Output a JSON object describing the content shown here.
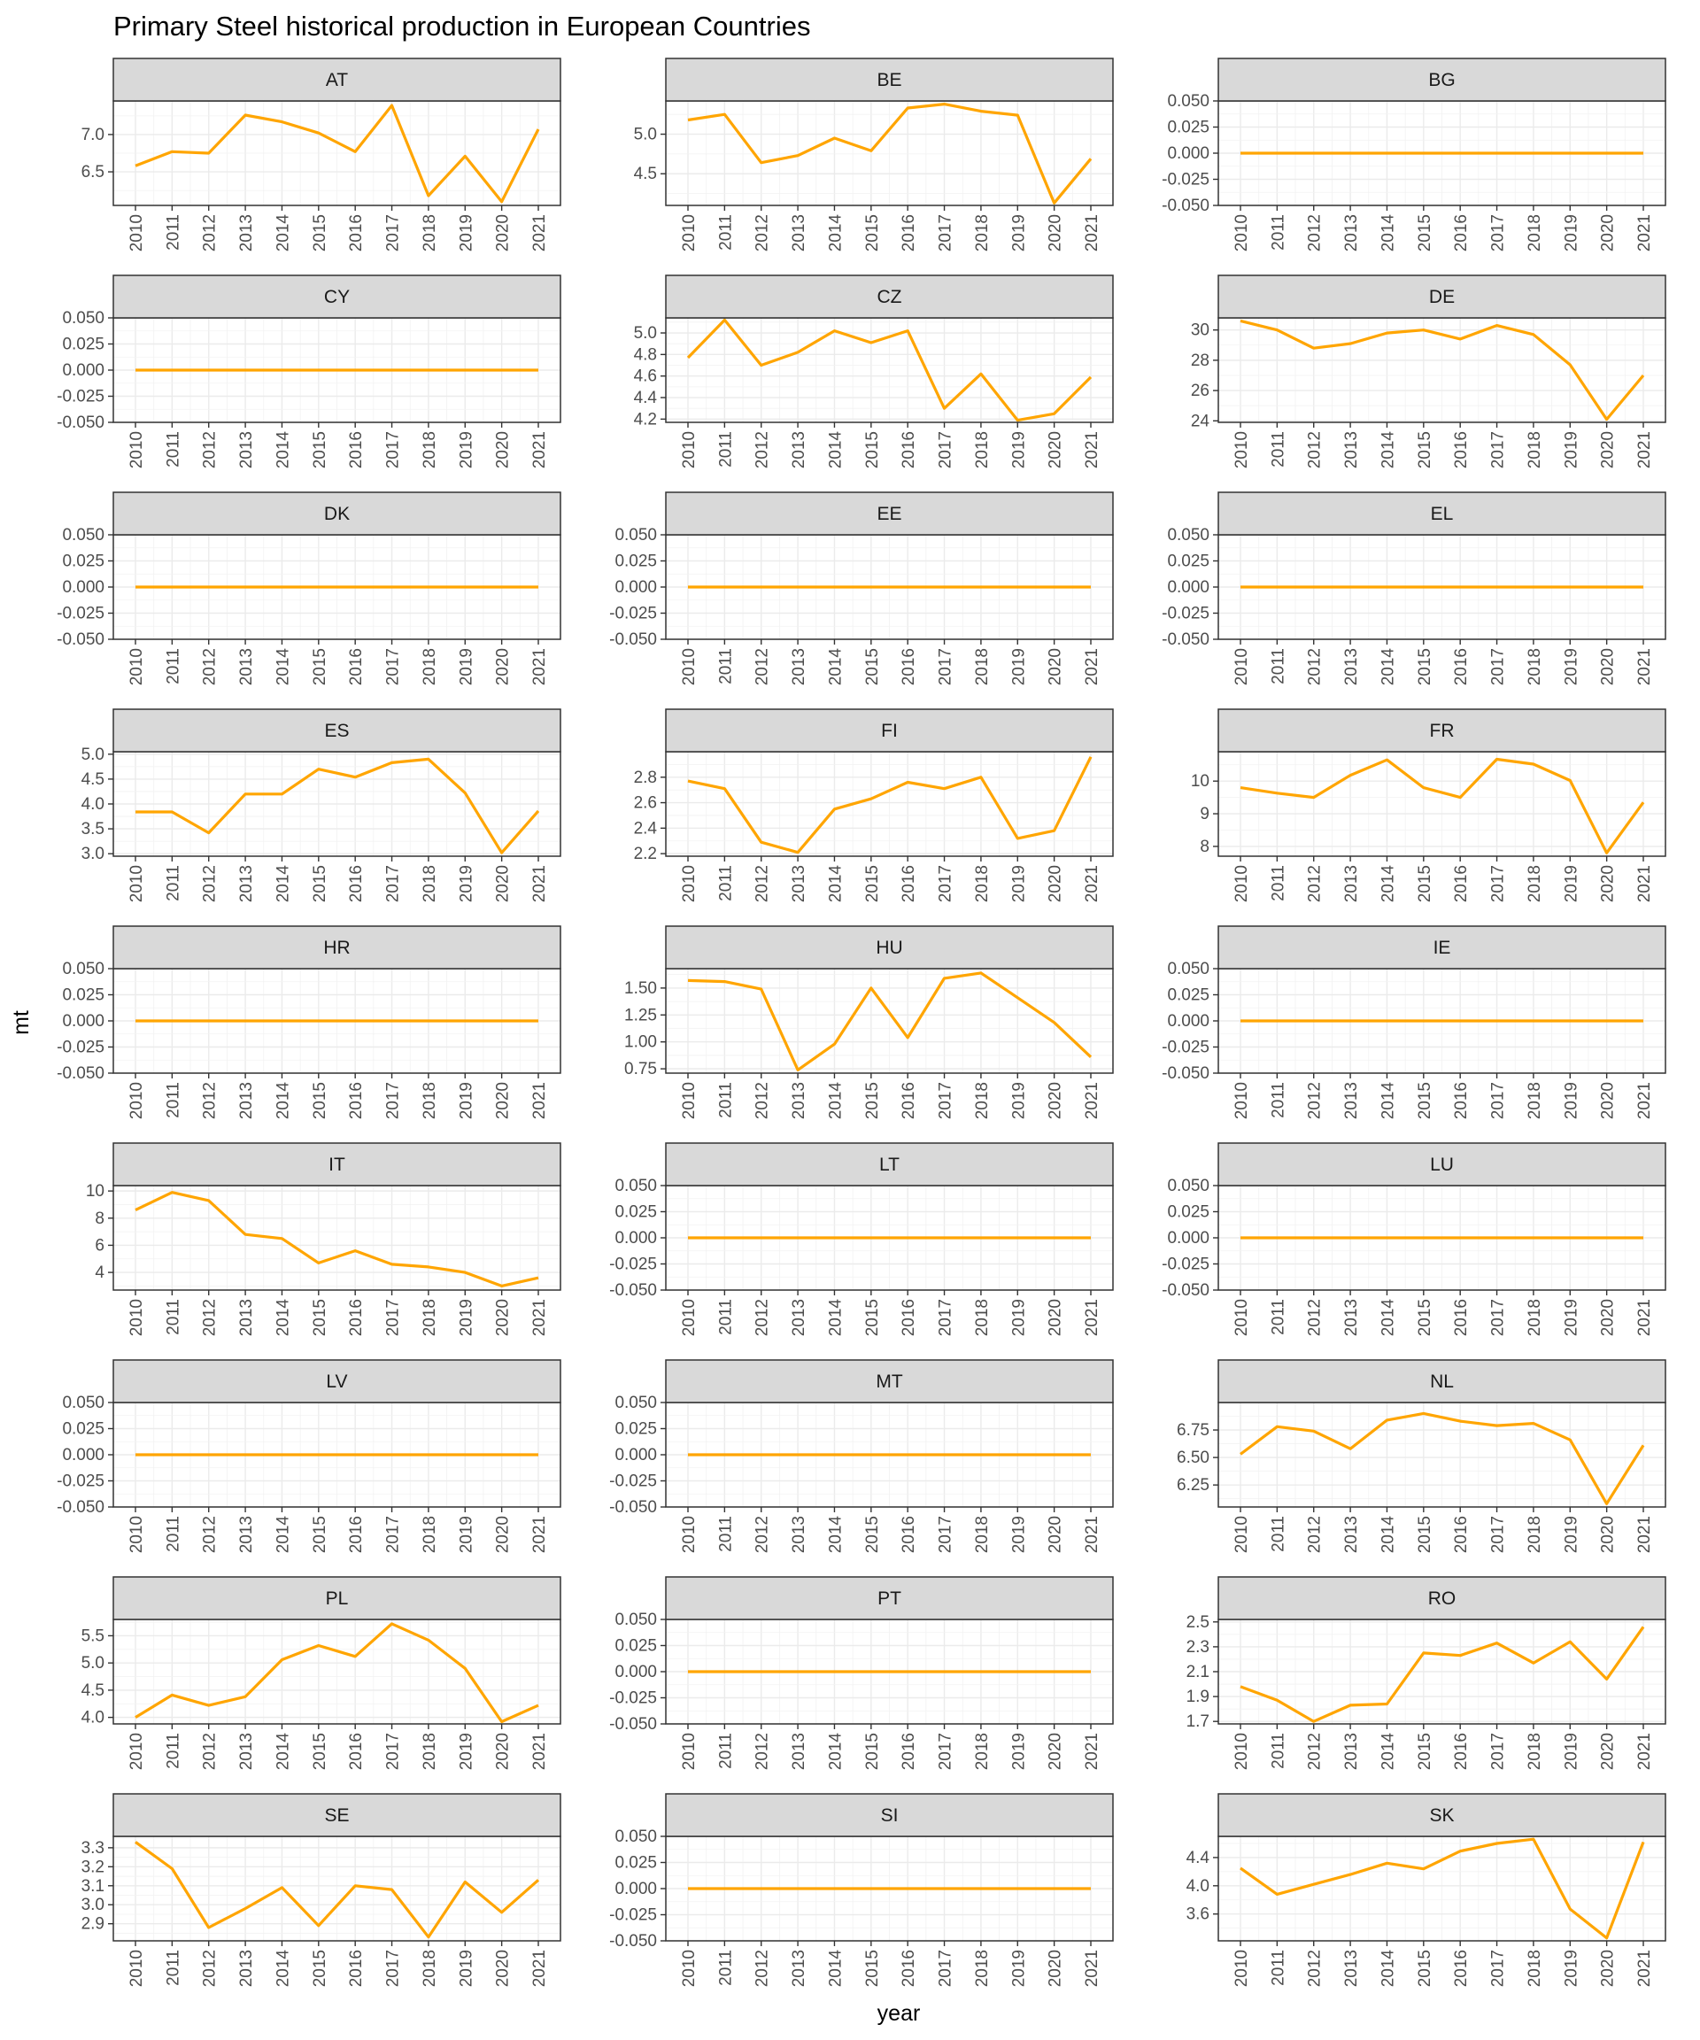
{
  "chart_data": {
    "type": "line",
    "title": "Primary Steel historical production in European Countries",
    "xlabel": "year",
    "ylabel": "mt",
    "x": [
      "2010",
      "2011",
      "2012",
      "2013",
      "2014",
      "2015",
      "2016",
      "2017",
      "2018",
      "2019",
      "2020",
      "2021"
    ],
    "line_color": "#FFA500",
    "layout": "facet grid, 9 rows x 3 columns",
    "grid": true,
    "panels": [
      {
        "name": "AT",
        "values": [
          6.58,
          6.77,
          6.75,
          7.26,
          7.17,
          7.02,
          6.77,
          7.39,
          6.18,
          6.71,
          6.1,
          7.07
        ],
        "yticks": [
          "6.5",
          "7.0"
        ],
        "ylim": [
          6.05,
          7.45
        ]
      },
      {
        "name": "BE",
        "values": [
          5.18,
          5.25,
          4.64,
          4.73,
          4.95,
          4.79,
          5.33,
          5.38,
          5.29,
          5.24,
          4.13,
          4.69
        ],
        "yticks": [
          "4.5",
          "5.0"
        ],
        "ylim": [
          4.1,
          5.42
        ]
      },
      {
        "name": "BG",
        "values": [
          0,
          0,
          0,
          0,
          0,
          0,
          0,
          0,
          0,
          0,
          0,
          0
        ],
        "yticks": [
          "-0.050",
          "-0.025",
          "0.000",
          "0.025",
          "0.050"
        ],
        "ylim": [
          -0.05,
          0.05
        ]
      },
      {
        "name": "CY",
        "values": [
          0,
          0,
          0,
          0,
          0,
          0,
          0,
          0,
          0,
          0,
          0,
          0
        ],
        "yticks": [
          "-0.050",
          "-0.025",
          "0.000",
          "0.025",
          "0.050"
        ],
        "ylim": [
          -0.05,
          0.05
        ]
      },
      {
        "name": "CZ",
        "values": [
          4.77,
          5.12,
          4.7,
          4.82,
          5.02,
          4.91,
          5.02,
          4.3,
          4.62,
          4.19,
          4.25,
          4.59
        ],
        "yticks": [
          "4.2",
          "4.4",
          "4.6",
          "4.8",
          "5.0"
        ],
        "ylim": [
          4.17,
          5.14
        ]
      },
      {
        "name": "DE",
        "values": [
          30.6,
          30.0,
          28.8,
          29.1,
          29.8,
          30.0,
          29.4,
          30.3,
          29.7,
          27.7,
          24.1,
          27.0
        ],
        "yticks": [
          "24",
          "26",
          "28",
          "30"
        ],
        "ylim": [
          23.9,
          30.8
        ]
      },
      {
        "name": "DK",
        "values": [
          0,
          0,
          0,
          0,
          0,
          0,
          0,
          0,
          0,
          0,
          0,
          0
        ],
        "yticks": [
          "-0.050",
          "-0.025",
          "0.000",
          "0.025",
          "0.050"
        ],
        "ylim": [
          -0.05,
          0.05
        ]
      },
      {
        "name": "EE",
        "values": [
          0,
          0,
          0,
          0,
          0,
          0,
          0,
          0,
          0,
          0,
          0,
          0
        ],
        "yticks": [
          "-0.050",
          "-0.025",
          "0.000",
          "0.025",
          "0.050"
        ],
        "ylim": [
          -0.05,
          0.05
        ]
      },
      {
        "name": "EL",
        "values": [
          0,
          0,
          0,
          0,
          0,
          0,
          0,
          0,
          0,
          0,
          0,
          0
        ],
        "yticks": [
          "-0.050",
          "-0.025",
          "0.000",
          "0.025",
          "0.050"
        ],
        "ylim": [
          -0.05,
          0.05
        ]
      },
      {
        "name": "ES",
        "values": [
          3.84,
          3.84,
          3.42,
          4.2,
          4.2,
          4.7,
          4.54,
          4.83,
          4.9,
          4.22,
          3.02,
          3.86
        ],
        "yticks": [
          "3.0",
          "3.5",
          "4.0",
          "4.5",
          "5.0"
        ],
        "ylim": [
          2.95,
          5.05
        ]
      },
      {
        "name": "FI",
        "values": [
          2.77,
          2.71,
          2.29,
          2.21,
          2.55,
          2.63,
          2.76,
          2.71,
          2.8,
          2.32,
          2.38,
          2.96
        ],
        "yticks": [
          "2.2",
          "2.4",
          "2.6",
          "2.8"
        ],
        "ylim": [
          2.18,
          3.0
        ]
      },
      {
        "name": "FR",
        "values": [
          9.8,
          9.63,
          9.5,
          10.18,
          10.65,
          9.8,
          9.5,
          10.67,
          10.52,
          10.02,
          7.8,
          9.35
        ],
        "yticks": [
          "8",
          "9",
          "10"
        ],
        "ylim": [
          7.7,
          10.9
        ]
      },
      {
        "name": "HR",
        "values": [
          0,
          0,
          0,
          0,
          0,
          0,
          0,
          0,
          0,
          0,
          0,
          0
        ],
        "yticks": [
          "-0.050",
          "-0.025",
          "0.000",
          "0.025",
          "0.050"
        ],
        "ylim": [
          -0.05,
          0.05
        ]
      },
      {
        "name": "HU",
        "values": [
          1.57,
          1.56,
          1.49,
          0.74,
          0.98,
          1.5,
          1.04,
          1.59,
          1.64,
          1.41,
          1.18,
          0.86
        ],
        "yticks": [
          "0.75",
          "1.00",
          "1.25",
          "1.50"
        ],
        "ylim": [
          0.71,
          1.68
        ]
      },
      {
        "name": "IE",
        "values": [
          0,
          0,
          0,
          0,
          0,
          0,
          0,
          0,
          0,
          0,
          0,
          0
        ],
        "yticks": [
          "-0.050",
          "-0.025",
          "0.000",
          "0.025",
          "0.050"
        ],
        "ylim": [
          -0.05,
          0.05
        ]
      },
      {
        "name": "IT",
        "values": [
          8.6,
          9.9,
          9.3,
          6.8,
          6.5,
          4.7,
          5.6,
          4.6,
          4.4,
          4.0,
          3.0,
          3.6
        ],
        "yticks": [
          "4",
          "6",
          "8",
          "10"
        ],
        "ylim": [
          2.7,
          10.4
        ]
      },
      {
        "name": "LT",
        "values": [
          0,
          0,
          0,
          0,
          0,
          0,
          0,
          0,
          0,
          0,
          0,
          0
        ],
        "yticks": [
          "-0.050",
          "-0.025",
          "0.000",
          "0.025",
          "0.050"
        ],
        "ylim": [
          -0.05,
          0.05
        ]
      },
      {
        "name": "LU",
        "values": [
          0,
          0,
          0,
          0,
          0,
          0,
          0,
          0,
          0,
          0,
          0,
          0
        ],
        "yticks": [
          "-0.050",
          "-0.025",
          "0.000",
          "0.025",
          "0.050"
        ],
        "ylim": [
          -0.05,
          0.05
        ]
      },
      {
        "name": "LV",
        "values": [
          0,
          0,
          0,
          0,
          0,
          0,
          0,
          0,
          0,
          0,
          0,
          0
        ],
        "yticks": [
          "-0.050",
          "-0.025",
          "0.000",
          "0.025",
          "0.050"
        ],
        "ylim": [
          -0.05,
          0.05
        ]
      },
      {
        "name": "MT",
        "values": [
          0,
          0,
          0,
          0,
          0,
          0,
          0,
          0,
          0,
          0,
          0,
          0
        ],
        "yticks": [
          "-0.050",
          "-0.025",
          "0.000",
          "0.025",
          "0.050"
        ],
        "ylim": [
          -0.05,
          0.05
        ]
      },
      {
        "name": "NL",
        "values": [
          6.53,
          6.78,
          6.74,
          6.58,
          6.84,
          6.9,
          6.83,
          6.79,
          6.81,
          6.66,
          6.08,
          6.61
        ],
        "yticks": [
          "6.25",
          "6.50",
          "6.75"
        ],
        "ylim": [
          6.05,
          7.0
        ]
      },
      {
        "name": "PL",
        "values": [
          4.0,
          4.41,
          4.22,
          4.38,
          5.06,
          5.32,
          5.12,
          5.72,
          5.42,
          4.9,
          3.92,
          4.22
        ],
        "yticks": [
          "4.0",
          "4.5",
          "5.0",
          "5.5"
        ],
        "ylim": [
          3.88,
          5.8
        ]
      },
      {
        "name": "PT",
        "values": [
          0,
          0,
          0,
          0,
          0,
          0,
          0,
          0,
          0,
          0,
          0,
          0
        ],
        "yticks": [
          "-0.050",
          "-0.025",
          "0.000",
          "0.025",
          "0.050"
        ],
        "ylim": [
          -0.05,
          0.05
        ]
      },
      {
        "name": "RO",
        "values": [
          1.98,
          1.87,
          1.7,
          1.83,
          1.84,
          2.25,
          2.23,
          2.33,
          2.17,
          2.34,
          2.04,
          2.46
        ],
        "yticks": [
          "1.7",
          "1.9",
          "2.1",
          "2.3",
          "2.5"
        ],
        "ylim": [
          1.68,
          2.52
        ]
      },
      {
        "name": "SE",
        "values": [
          3.33,
          3.19,
          2.88,
          2.98,
          3.09,
          2.89,
          3.1,
          3.08,
          2.83,
          3.12,
          2.96,
          3.13
        ],
        "yticks": [
          "2.9",
          "3.0",
          "3.1",
          "3.2",
          "3.3"
        ],
        "ylim": [
          2.81,
          3.36
        ]
      },
      {
        "name": "SI",
        "values": [
          0,
          0,
          0,
          0,
          0,
          0,
          0,
          0,
          0,
          0,
          0,
          0
        ],
        "yticks": [
          "-0.050",
          "-0.025",
          "0.000",
          "0.025",
          "0.050"
        ],
        "ylim": [
          -0.05,
          0.05
        ]
      },
      {
        "name": "SK",
        "values": [
          4.25,
          3.88,
          4.02,
          4.16,
          4.32,
          4.24,
          4.49,
          4.6,
          4.66,
          3.67,
          3.26,
          4.62
        ],
        "yticks": [
          "3.6",
          "4.0",
          "4.4"
        ],
        "ylim": [
          3.22,
          4.7
        ]
      }
    ]
  }
}
